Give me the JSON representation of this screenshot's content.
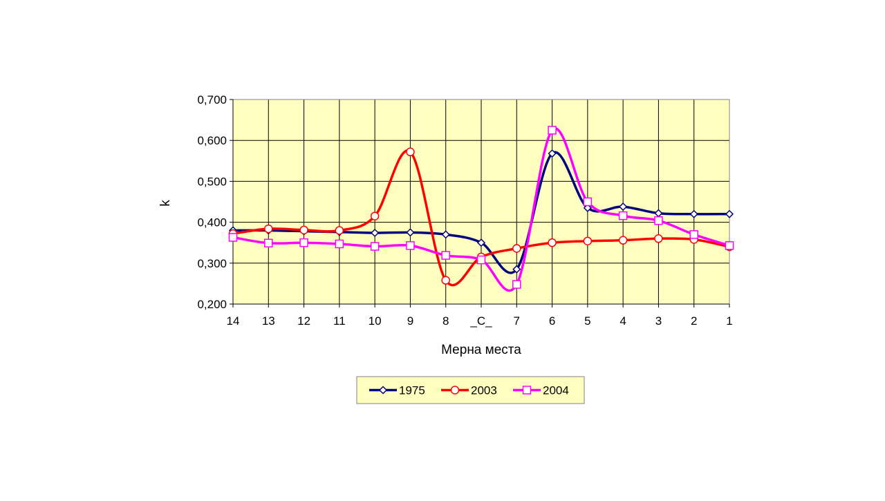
{
  "chart_data": {
    "type": "line",
    "xlabel": "Мерна места",
    "ylabel": "k",
    "categories": [
      "14",
      "13",
      "12",
      "11",
      "10",
      "9",
      "8",
      "_C_",
      "7",
      "6",
      "5",
      "4",
      "3",
      "2",
      "1"
    ],
    "ylim": [
      0.2,
      0.7
    ],
    "yticks": [
      0.2,
      0.3,
      0.4,
      0.5,
      0.6,
      0.7
    ],
    "ytick_labels": [
      "0,200",
      "0,300",
      "0,400",
      "0,500",
      "0,600",
      "0,700"
    ],
    "grid": true,
    "smooth": true,
    "plot_background": "#FFFFC0",
    "legend_position": "bottom",
    "legend_background": "#FFFFC0",
    "series": [
      {
        "name": "1975",
        "color": "#000080",
        "marker": "diamond",
        "values": [
          0.38,
          0.38,
          0.378,
          0.376,
          0.374,
          0.375,
          0.37,
          0.35,
          0.285,
          0.568,
          0.435,
          0.438,
          0.422,
          0.42,
          0.42
        ]
      },
      {
        "name": "2003",
        "color": "#FF0000",
        "marker": "circle",
        "values": [
          0.372,
          0.384,
          0.381,
          0.38,
          0.415,
          0.572,
          0.258,
          0.315,
          0.336,
          0.35,
          0.354,
          0.356,
          0.36,
          0.358,
          0.34
        ]
      },
      {
        "name": "2004",
        "color": "#FF00FF",
        "marker": "square",
        "values": [
          0.363,
          0.349,
          0.35,
          0.347,
          0.341,
          0.343,
          0.319,
          0.308,
          0.248,
          0.625,
          0.45,
          0.416,
          0.404,
          0.37,
          0.343
        ]
      }
    ]
  }
}
